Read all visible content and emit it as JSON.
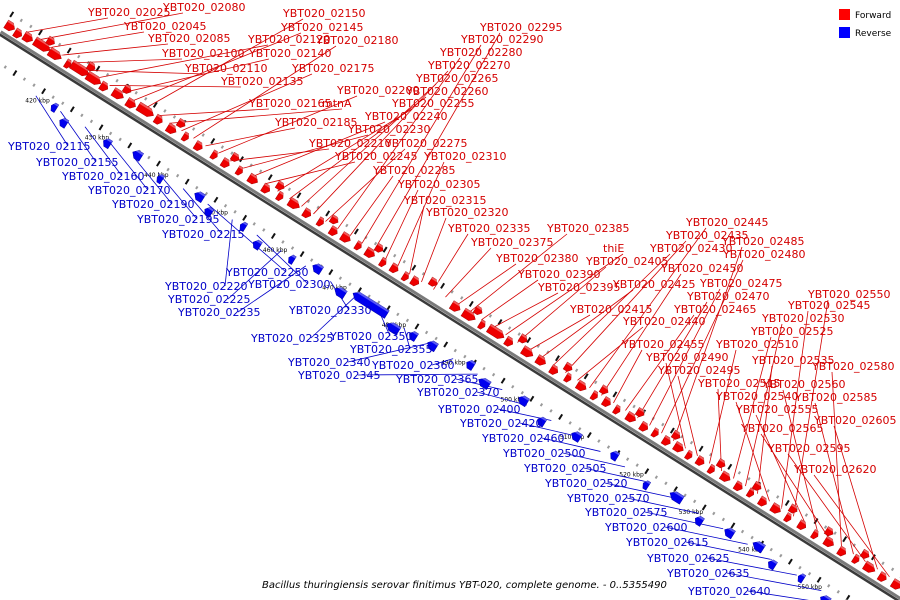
{
  "caption": "Bacillus thuringiensis serovar finitimus YBT-020, complete genome. - 0..5355490",
  "legend": [
    {
      "label": "Forward",
      "color": "#ff0000"
    },
    {
      "label": "Reverse",
      "color": "#0000ff"
    }
  ],
  "tick_labels": [
    "420 kbp",
    "430 kbp",
    "440 kbp",
    "450 kbp",
    "460 kbp",
    "470 kbp",
    "480 kbp",
    "490 kbp",
    "500 kbp",
    "510 kbp",
    "520 kbp",
    "530 kbp",
    "540 kbp",
    "550 kbp"
  ],
  "forward_genes": [
    "YBT020_02025",
    "YBT020_02080",
    "YBT020_02045",
    "YBT020_02085",
    "YBT020_02100",
    "YBT020_02110",
    "YBT020_02120",
    "YBT020_02135",
    "YBT020_02140",
    "YBT020_02145",
    "YBT020_02150",
    "YBT020_02165",
    "mtnA",
    "YBT020_02175",
    "YBT020_02180",
    "YBT020_02185",
    "YBT020_02200",
    "YBT020_02210",
    "YBT020_02230",
    "YBT020_02240",
    "YBT020_02245",
    "YBT020_02255",
    "YBT020_02260",
    "YBT020_02265",
    "YBT020_02270",
    "YBT020_02275",
    "YBT020_02280",
    "YBT020_02285",
    "YBT020_02290",
    "YBT020_02295",
    "YBT020_02305",
    "YBT020_02310",
    "YBT020_02315",
    "YBT020_02320",
    "YBT020_02335",
    "YBT020_02375",
    "YBT020_02380",
    "YBT020_02385",
    "YBT020_02390",
    "YBT020_02395",
    "thiE",
    "YBT020_02405",
    "YBT020_02415",
    "YBT020_02425",
    "YBT020_02430",
    "YBT020_02435",
    "YBT020_02440",
    "YBT020_02445",
    "YBT020_02450",
    "YBT020_02455",
    "YBT020_02465",
    "YBT020_02470",
    "YBT020_02475",
    "YBT020_02480",
    "YBT020_02485",
    "YBT020_02490",
    "YBT020_02495",
    "YBT020_02510",
    "YBT020_02515",
    "YBT020_02525",
    "YBT020_02530",
    "YBT020_02535",
    "YBT020_02540",
    "YBT020_02545",
    "YBT020_02550",
    "YBT020_02555",
    "YBT020_02560",
    "YBT020_02565",
    "YBT020_02580",
    "YBT020_02585",
    "YBT020_02595",
    "YBT020_02605",
    "YBT020_02620"
  ],
  "reverse_genes": [
    "YBT020_02115",
    "YBT020_02155",
    "YBT020_02160",
    "YBT020_02170",
    "YBT020_02190",
    "YBT020_02195",
    "YBT020_02215",
    "YBT020_02250",
    "YBT020_02220",
    "YBT020_02300",
    "YBT020_02225",
    "YBT020_02235",
    "YBT020_02330",
    "YBT020_02325",
    "YBT020_02350",
    "YBT020_02355",
    "YBT020_02340",
    "YBT020_02360",
    "YBT020_02345",
    "YBT020_02365",
    "YBT020_02370",
    "YBT020_02400",
    "YBT020_02420",
    "YBT020_02460",
    "YBT020_02500",
    "YBT020_02505",
    "YBT020_02520",
    "YBT020_02570",
    "YBT020_02575",
    "YBT020_02600",
    "YBT020_02615",
    "YBT020_02625",
    "YBT020_02635",
    "YBT020_02640"
  ]
}
